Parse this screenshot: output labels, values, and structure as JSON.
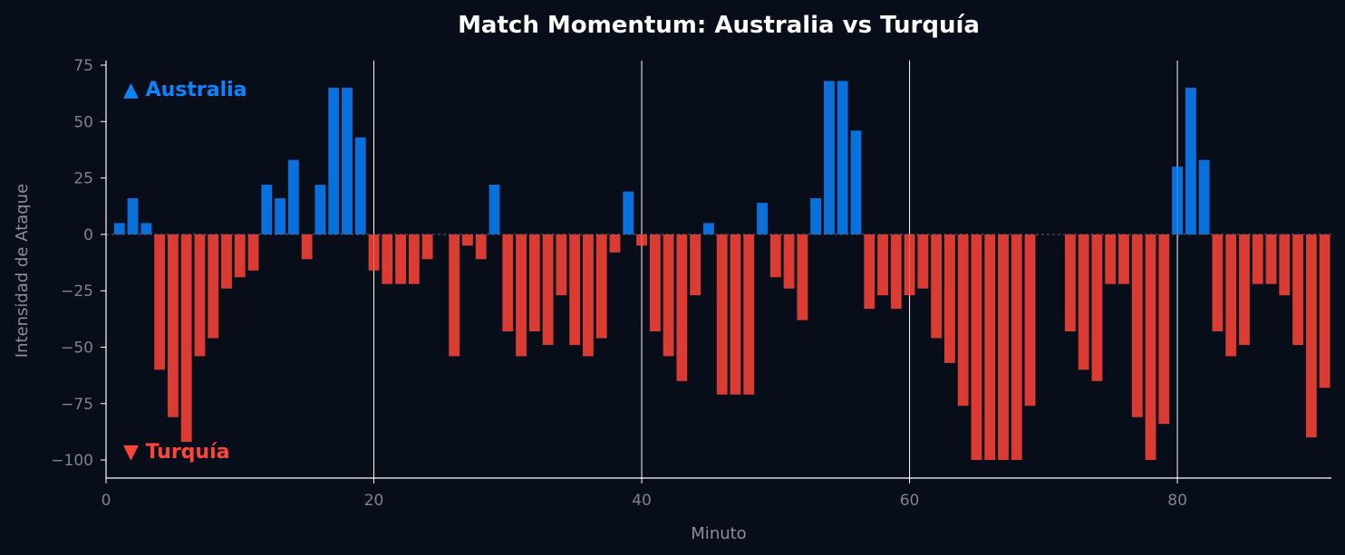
{
  "chart_data": {
    "type": "bar",
    "title": "Match Momentum: Australia vs Turquía",
    "xlabel": "Minuto",
    "ylabel": "Intensidad de Ataque",
    "xlim": [
      0,
      91.5
    ],
    "ylim": [
      -108,
      77
    ],
    "xticks": [
      0,
      20,
      40,
      60,
      80
    ],
    "yticks": [
      -100,
      -75,
      -50,
      -25,
      0,
      25,
      50,
      75
    ],
    "ytick_labels": [
      "−100",
      "−75",
      "−50",
      "−25",
      "0",
      "25",
      "50",
      "75"
    ],
    "event_lines": [
      20,
      40,
      60,
      80
    ],
    "series": [
      {
        "name": "▲ Australia",
        "color": "#0a84ff"
      },
      {
        "name": "▼ Turquía",
        "color": "#ff453a"
      }
    ],
    "x": [
      1,
      2,
      3,
      4,
      5,
      6,
      7,
      8,
      9,
      10,
      11,
      12,
      13,
      14,
      15,
      16,
      17,
      18,
      19,
      20,
      21,
      22,
      23,
      24,
      25,
      26,
      27,
      28,
      29,
      30,
      31,
      32,
      33,
      34,
      35,
      36,
      37,
      38,
      39,
      40,
      41,
      42,
      43,
      44,
      45,
      46,
      47,
      48,
      49,
      50,
      51,
      52,
      53,
      54,
      55,
      56,
      57,
      58,
      59,
      60,
      61,
      62,
      63,
      64,
      65,
      66,
      67,
      68,
      69,
      70,
      71,
      72,
      73,
      74,
      75,
      76,
      77,
      78,
      79,
      80,
      81,
      82,
      83,
      84,
      85,
      86,
      87,
      88,
      89,
      90,
      91
    ],
    "values": [
      5,
      16,
      5,
      -60,
      -81,
      -92,
      -54,
      -46,
      -24,
      -19,
      -16,
      22,
      16,
      33,
      -11,
      22,
      65,
      65,
      43,
      -16,
      -22,
      -22,
      -22,
      -11,
      0,
      -54,
      -5,
      -11,
      22,
      -43,
      -54,
      -43,
      -49,
      -27,
      -49,
      -54,
      -46,
      -8,
      19,
      -5,
      -43,
      -54,
      -65,
      -27,
      5,
      -71,
      -71,
      -71,
      14,
      -19,
      -24,
      -38,
      16,
      68,
      68,
      46,
      -33,
      -27,
      -33,
      -27,
      -24,
      -46,
      -57,
      -76,
      -100,
      -100,
      -100,
      -100,
      -76,
      0,
      0,
      -43,
      -60,
      -65,
      -22,
      -22,
      -81,
      -100,
      -84,
      30,
      65,
      33,
      -43,
      -54,
      -49,
      -22,
      -22,
      -27,
      -49,
      -90,
      -68
    ]
  },
  "legend": {
    "australia": "▲ Australia",
    "turquia": "▼ Turquía"
  },
  "colors": {
    "background": "#070d19",
    "positive": "#0a84ff",
    "negative": "#ff453a",
    "axis": "#ffffff",
    "tick_text": "#7d838d"
  }
}
